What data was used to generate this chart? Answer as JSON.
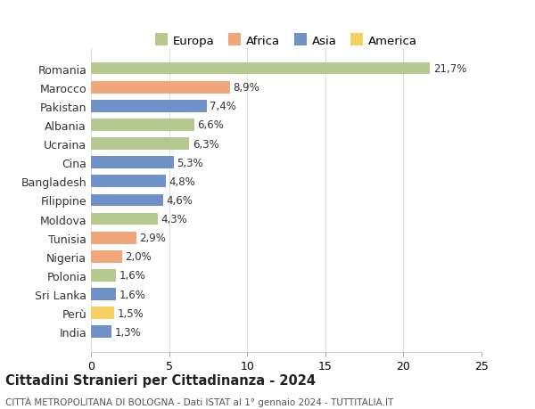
{
  "categories": [
    "Romania",
    "Marocco",
    "Pakistan",
    "Albania",
    "Ucraina",
    "Cina",
    "Bangladesh",
    "Filippine",
    "Moldova",
    "Tunisia",
    "Nigeria",
    "Polonia",
    "Sri Lanka",
    "Perù",
    "India"
  ],
  "values": [
    21.7,
    8.9,
    7.4,
    6.6,
    6.3,
    5.3,
    4.8,
    4.6,
    4.3,
    2.9,
    2.0,
    1.6,
    1.6,
    1.5,
    1.3
  ],
  "labels": [
    "21,7%",
    "8,9%",
    "7,4%",
    "6,6%",
    "6,3%",
    "5,3%",
    "4,8%",
    "4,6%",
    "4,3%",
    "2,9%",
    "2,0%",
    "1,6%",
    "1,6%",
    "1,5%",
    "1,3%"
  ],
  "continents": [
    "Europa",
    "Africa",
    "Asia",
    "Europa",
    "Europa",
    "Asia",
    "Asia",
    "Asia",
    "Europa",
    "Africa",
    "Africa",
    "Europa",
    "Asia",
    "America",
    "Asia"
  ],
  "continent_colors": {
    "Europa": "#b5c98e",
    "Africa": "#f0a87a",
    "Asia": "#7090c8",
    "America": "#f5d060"
  },
  "legend_order": [
    "Europa",
    "Africa",
    "Asia",
    "America"
  ],
  "xlim": [
    0,
    25
  ],
  "xticks": [
    0,
    5,
    10,
    15,
    20,
    25
  ],
  "title": "Cittadini Stranieri per Cittadinanza - 2024",
  "subtitle": "CITTÀ METROPOLITANA DI BOLOGNA - Dati ISTAT al 1° gennaio 2024 - TUTTITALIA.IT",
  "background_color": "#ffffff",
  "grid_color": "#dddddd",
  "bar_height": 0.65,
  "figsize": [
    6.0,
    4.6
  ],
  "dpi": 100
}
